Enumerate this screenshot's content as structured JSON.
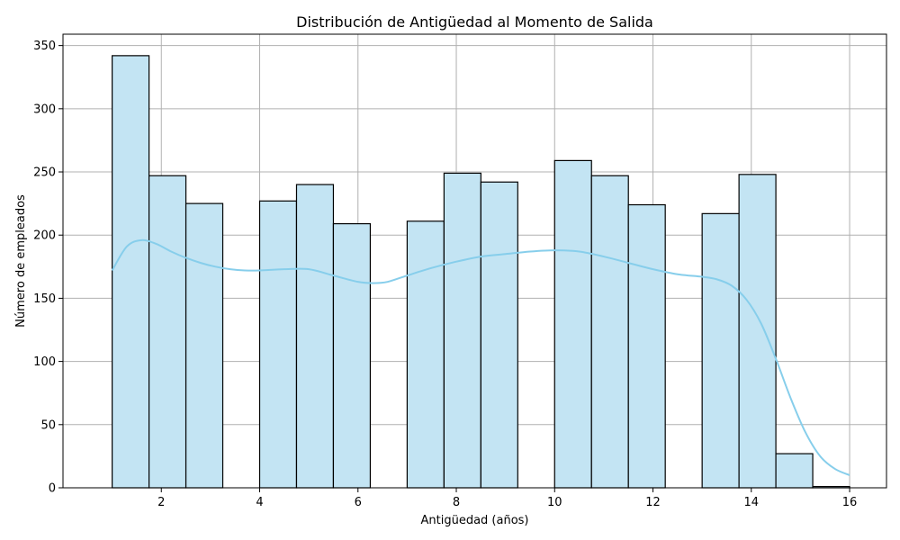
{
  "chart_data": {
    "type": "bar",
    "subtype": "histogram-with-kde",
    "title": "Distribución de Antigüedad al Momento de Salida",
    "xlabel": "Antigüedad (años)",
    "ylabel": "Número de empleados",
    "xlim": [
      0.0,
      16.75
    ],
    "ylim": [
      0,
      359
    ],
    "xticks": [
      2,
      4,
      6,
      8,
      10,
      12,
      14,
      16
    ],
    "yticks": [
      0,
      50,
      100,
      150,
      200,
      250,
      300,
      350
    ],
    "grid": true,
    "bin_edges": [
      1.0,
      1.75,
      2.5,
      3.25,
      4.0,
      4.75,
      5.5,
      6.25,
      7.0,
      7.75,
      8.5,
      9.25,
      10.0,
      10.75,
      11.5,
      12.25,
      13.0,
      13.75,
      14.5,
      15.25,
      16.0
    ],
    "values": [
      342,
      247,
      225,
      0,
      227,
      240,
      209,
      0,
      211,
      249,
      242,
      0,
      259,
      247,
      224,
      0,
      217,
      248,
      27,
      1
    ],
    "kde": {
      "x": [
        1.0,
        1.3,
        1.6,
        1.9,
        2.2,
        2.5,
        2.8,
        3.1,
        3.4,
        3.7,
        4.0,
        4.5,
        5.0,
        5.5,
        6.0,
        6.3,
        6.6,
        7.0,
        7.5,
        8.0,
        8.5,
        9.0,
        9.5,
        10.0,
        10.5,
        11.0,
        11.5,
        12.0,
        12.5,
        13.0,
        13.3,
        13.6,
        13.9,
        14.2,
        14.5,
        14.8,
        15.1,
        15.4,
        15.7,
        16.0
      ],
      "y": [
        172,
        191,
        196,
        193,
        187,
        182,
        178,
        175,
        173,
        172,
        172,
        173,
        173,
        168,
        163,
        162,
        163,
        168,
        174,
        179,
        183,
        185,
        187,
        188,
        187,
        183,
        178,
        173,
        169,
        167,
        165,
        160,
        149,
        130,
        102,
        71,
        44,
        25,
        15,
        10
      ]
    },
    "colors": {
      "bar_fill": "#c3e4f3",
      "bar_edge": "#000000",
      "kde_line": "#87ceeb",
      "grid": "#b0b0b0"
    }
  }
}
